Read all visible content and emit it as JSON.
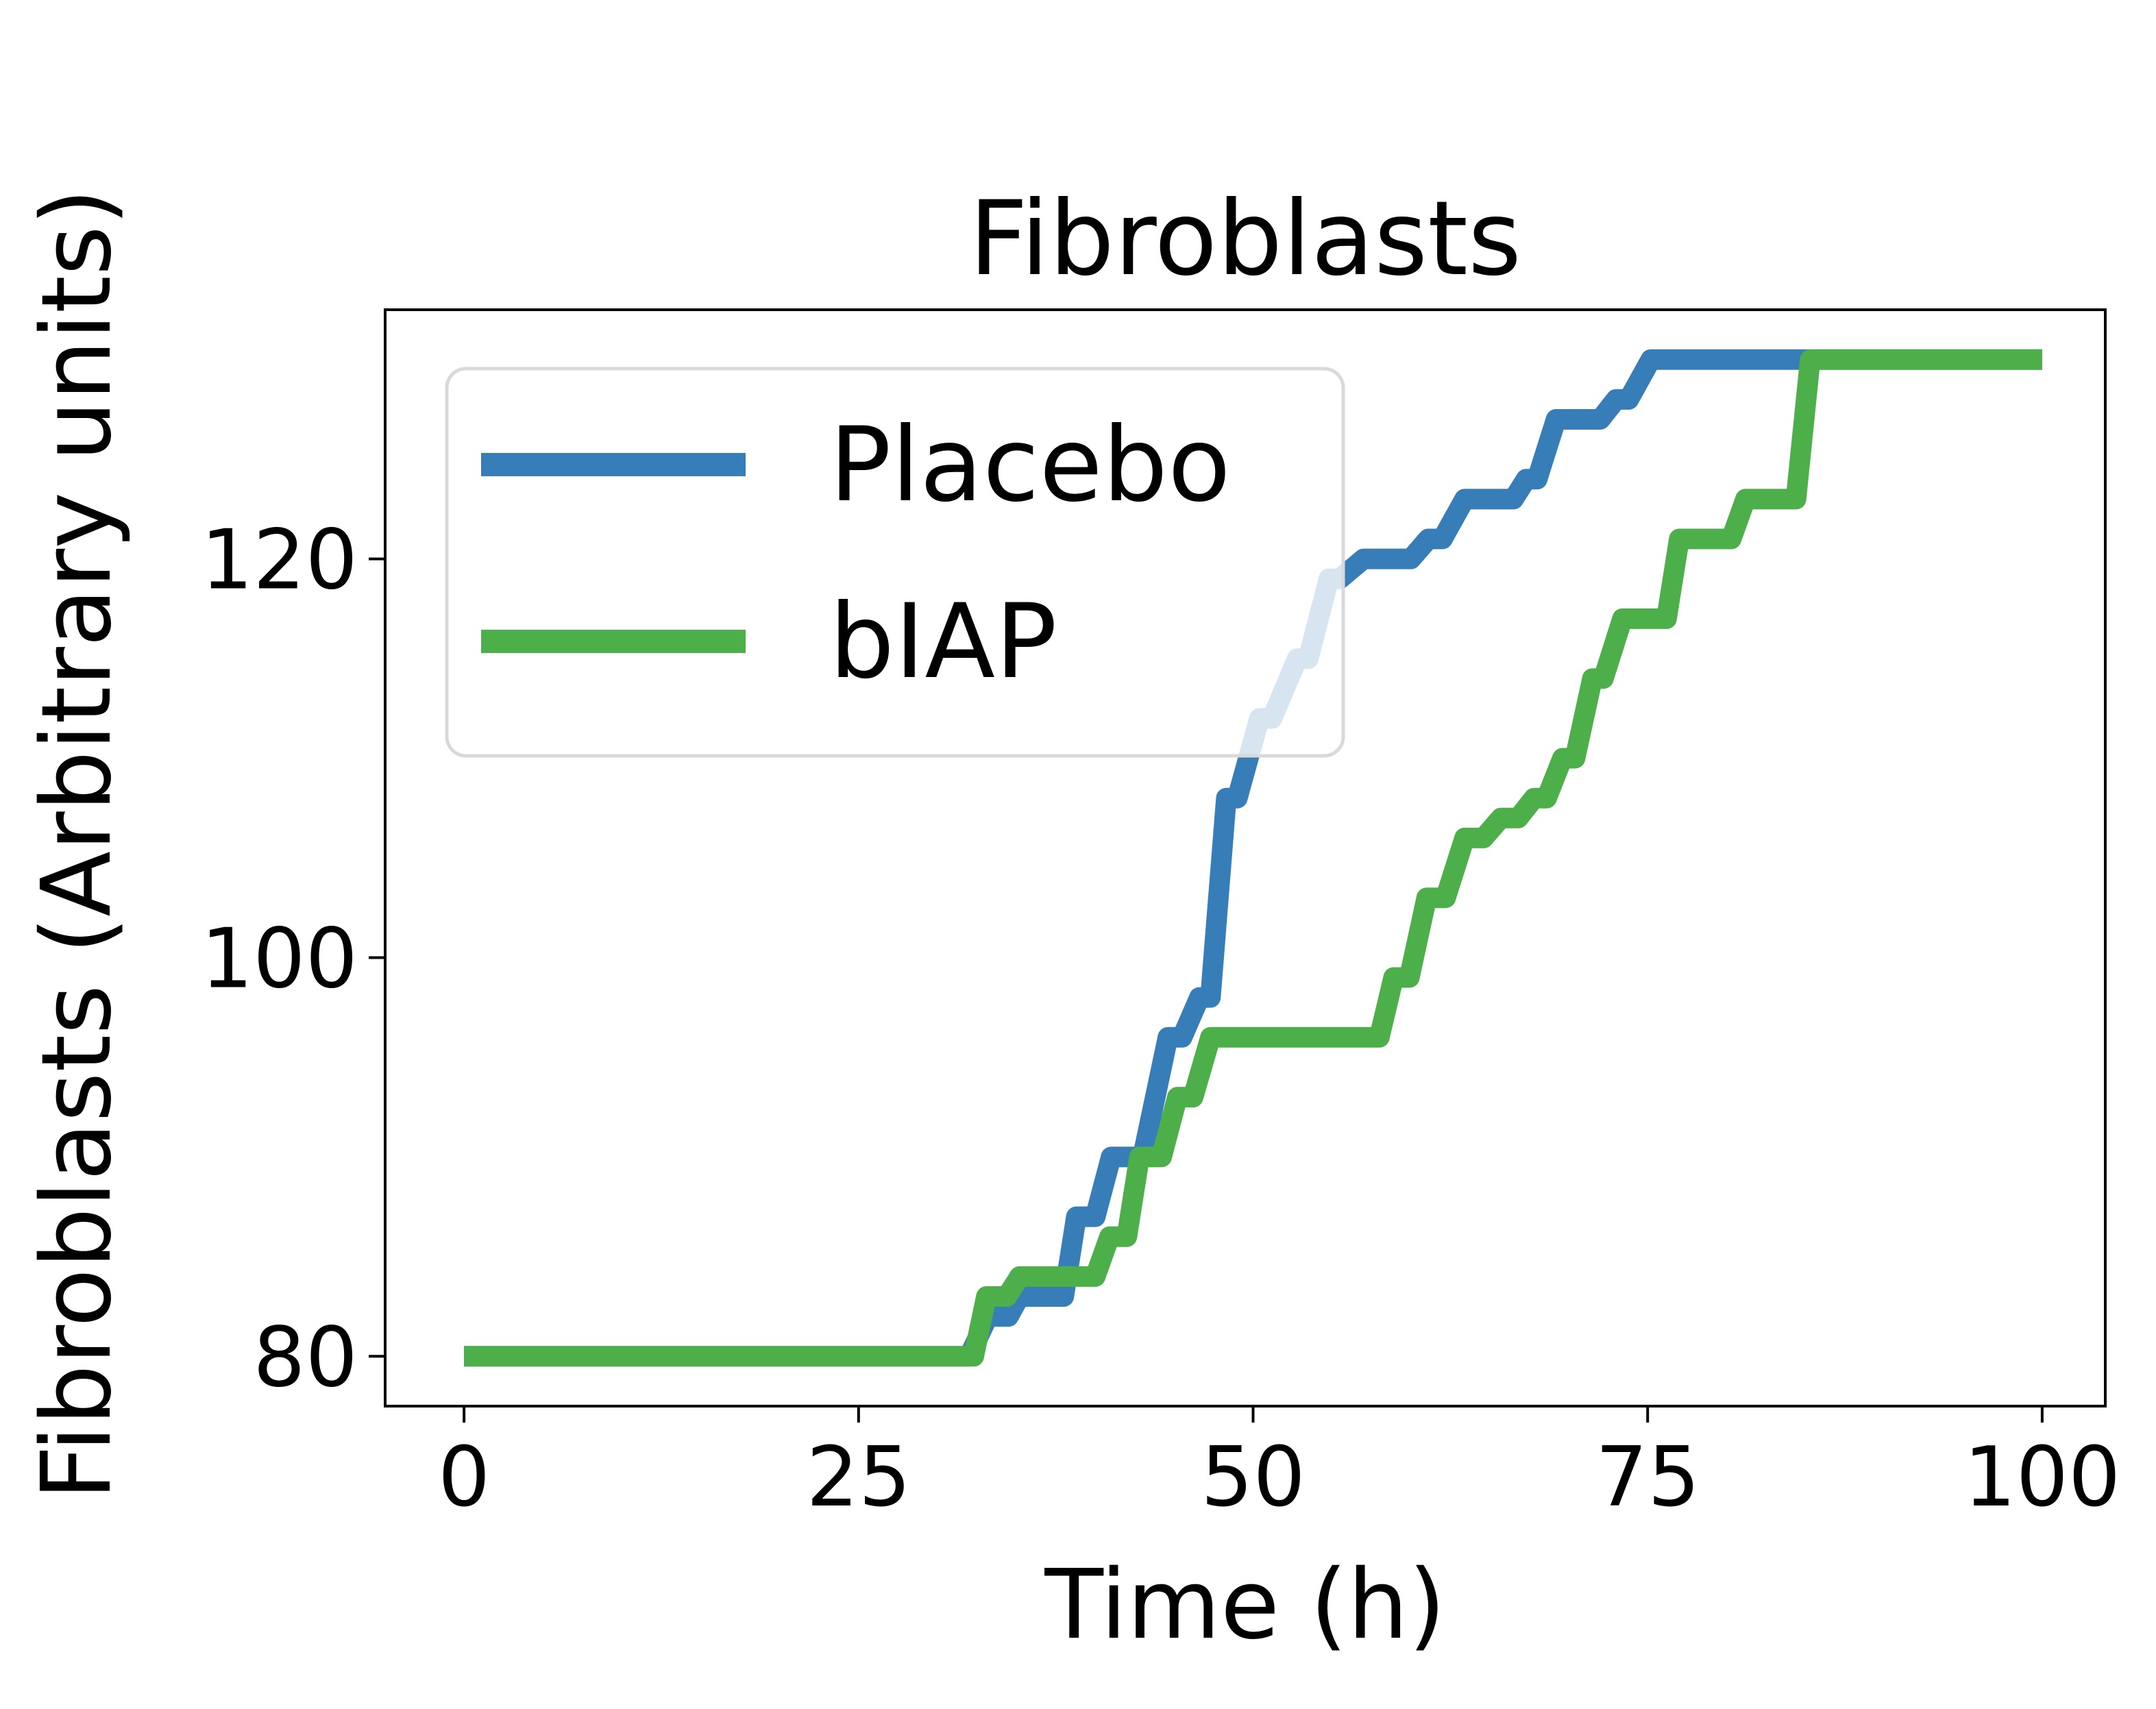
{
  "chart_data": {
    "type": "line",
    "title": "Fibroblasts",
    "xlabel": "Time (h)",
    "ylabel": "Fibroblasts (Arbitrary units)",
    "xlim": [
      -5,
      104
    ],
    "ylim": [
      77.5,
      132.5
    ],
    "xticks": [
      0,
      25,
      50,
      75,
      100
    ],
    "yticks": [
      80,
      100,
      120
    ],
    "grid": false,
    "legend": {
      "position": "upper-left"
    },
    "series": [
      {
        "name": "Placebo",
        "color": "#377eb8",
        "points": [
          [
            0,
            80
          ],
          [
            32,
            80
          ],
          [
            33.2,
            82
          ],
          [
            34.5,
            82
          ],
          [
            35.2,
            83
          ],
          [
            38,
            83
          ],
          [
            38.8,
            87
          ],
          [
            40,
            87
          ],
          [
            41,
            90
          ],
          [
            43,
            90
          ],
          [
            44.6,
            96
          ],
          [
            45.5,
            96
          ],
          [
            46.6,
            98
          ],
          [
            47.3,
            98
          ],
          [
            48.3,
            108
          ],
          [
            49,
            108
          ],
          [
            50.4,
            112
          ],
          [
            51.2,
            112
          ],
          [
            52.8,
            115
          ],
          [
            53.5,
            115
          ],
          [
            54.8,
            119
          ],
          [
            55.5,
            119
          ],
          [
            57,
            120
          ],
          [
            60,
            120
          ],
          [
            61.1,
            121
          ],
          [
            62,
            121
          ],
          [
            63.4,
            123
          ],
          [
            66.5,
            123
          ],
          [
            67.3,
            124
          ],
          [
            68,
            124
          ],
          [
            69.2,
            127
          ],
          [
            72,
            127
          ],
          [
            73,
            128
          ],
          [
            73.8,
            128
          ],
          [
            75.2,
            130
          ],
          [
            100,
            130
          ]
        ]
      },
      {
        "name": "bIAP",
        "color": "#4daf4a",
        "points": [
          [
            0,
            80
          ],
          [
            32.3,
            80
          ],
          [
            33.1,
            83
          ],
          [
            34.4,
            83
          ],
          [
            35.2,
            84
          ],
          [
            40,
            84
          ],
          [
            40.9,
            86
          ],
          [
            42,
            86
          ],
          [
            42.8,
            90
          ],
          [
            44.2,
            90
          ],
          [
            45.2,
            93
          ],
          [
            46.2,
            93
          ],
          [
            47.3,
            96
          ],
          [
            58,
            96
          ],
          [
            58.9,
            99
          ],
          [
            59.9,
            99
          ],
          [
            61,
            103
          ],
          [
            62.2,
            103
          ],
          [
            63.4,
            106
          ],
          [
            64.6,
            106
          ],
          [
            65.7,
            107
          ],
          [
            66.8,
            107
          ],
          [
            67.8,
            108
          ],
          [
            68.6,
            108
          ],
          [
            69.6,
            110
          ],
          [
            70.4,
            110
          ],
          [
            71.5,
            114
          ],
          [
            72.2,
            114
          ],
          [
            73.4,
            117
          ],
          [
            76.2,
            117
          ],
          [
            77,
            121
          ],
          [
            80.3,
            121
          ],
          [
            81.2,
            123
          ],
          [
            84.4,
            123
          ],
          [
            85.3,
            130
          ],
          [
            100,
            130
          ]
        ]
      }
    ]
  }
}
